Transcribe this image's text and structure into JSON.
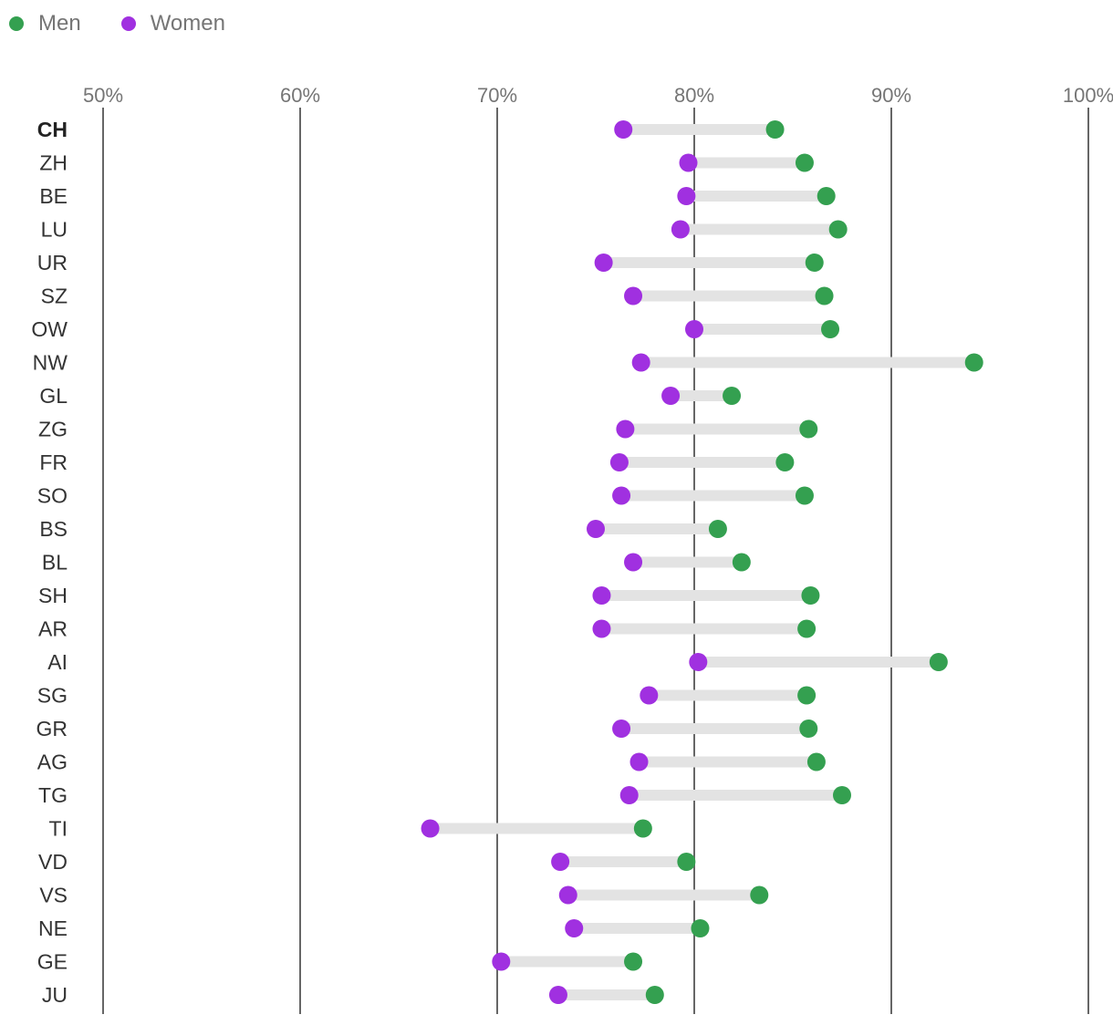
{
  "legend": {
    "men_label": "Men",
    "women_label": "Women"
  },
  "colors": {
    "men": "#34a050",
    "women": "#a030e0",
    "connector": "#e3e3e3",
    "gridline": "#666666"
  },
  "chart_data": {
    "type": "dumbbell",
    "title": "",
    "xlabel": "",
    "ylabel": "",
    "x_ticks": [
      "50%",
      "60%",
      "70%",
      "80%",
      "90%",
      "100%"
    ],
    "xlim": [
      50,
      100
    ],
    "grid": true,
    "legend_position": "top-left",
    "categories": [
      "CH",
      "ZH",
      "BE",
      "LU",
      "UR",
      "SZ",
      "OW",
      "NW",
      "GL",
      "ZG",
      "FR",
      "SO",
      "BS",
      "BL",
      "SH",
      "AR",
      "AI",
      "SG",
      "GR",
      "AG",
      "TG",
      "TI",
      "VD",
      "VS",
      "NE",
      "GE",
      "JU"
    ],
    "bold_categories": [
      "CH"
    ],
    "series": [
      {
        "name": "Men",
        "values": [
          84.1,
          85.6,
          86.7,
          87.3,
          86.1,
          86.6,
          86.9,
          94.2,
          81.9,
          85.8,
          84.6,
          85.6,
          81.2,
          82.4,
          85.9,
          85.7,
          92.4,
          85.7,
          85.8,
          86.2,
          87.5,
          77.4,
          79.6,
          83.3,
          80.3,
          76.9,
          78.0
        ]
      },
      {
        "name": "Women",
        "values": [
          76.4,
          79.7,
          79.6,
          79.3,
          75.4,
          76.9,
          80.0,
          77.3,
          78.8,
          76.5,
          76.2,
          76.3,
          75.0,
          76.9,
          75.3,
          75.3,
          80.2,
          77.7,
          76.3,
          77.2,
          76.7,
          66.6,
          73.2,
          73.6,
          73.9,
          70.2,
          73.1
        ]
      }
    ]
  }
}
